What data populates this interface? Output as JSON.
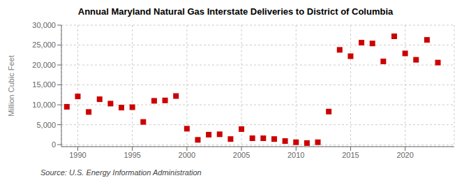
{
  "chart_data": {
    "type": "scatter",
    "title": "Annual Maryland Natural Gas Interstate Deliveries to District of Columbia",
    "ylabel": "Million Cubic Feet",
    "annotation": "Source: U.S. Energy Information Administration",
    "x": [
      1989,
      1990,
      1991,
      1992,
      1993,
      1994,
      1995,
      1996,
      1997,
      1998,
      1999,
      2000,
      2001,
      2002,
      2003,
      2004,
      2005,
      2006,
      2007,
      2008,
      2009,
      2010,
      2011,
      2012,
      2013,
      2014,
      2015,
      2016,
      2017,
      2018,
      2019,
      2020,
      2021,
      2022,
      2023
    ],
    "values": [
      9500,
      12100,
      8200,
      11400,
      10300,
      9300,
      9400,
      5700,
      11000,
      11100,
      12200,
      4000,
      1200,
      2500,
      2600,
      1400,
      3900,
      1600,
      1600,
      1400,
      900,
      600,
      400,
      600,
      8300,
      23800,
      22200,
      25600,
      25400,
      20900,
      27200,
      22900,
      21300,
      26300,
      20600
    ],
    "color": "#cc0000",
    "marker": "square",
    "xlim": [
      1988.5,
      2024.5
    ],
    "xticks": [
      1990,
      1995,
      2000,
      2005,
      2010,
      2015,
      2020
    ],
    "ylim": [
      -500,
      30000
    ],
    "yticks": [
      0,
      {
        "value": 5000,
        "label": "5,000"
      },
      {
        "value": 10000,
        "label": "10,000"
      },
      {
        "value": 15000,
        "label": "15,000"
      },
      {
        "value": 20000,
        "label": "20,000"
      },
      {
        "value": 25000,
        "label": "25,000"
      },
      {
        "value": 30000,
        "label": "30,000"
      }
    ],
    "grid": true
  }
}
